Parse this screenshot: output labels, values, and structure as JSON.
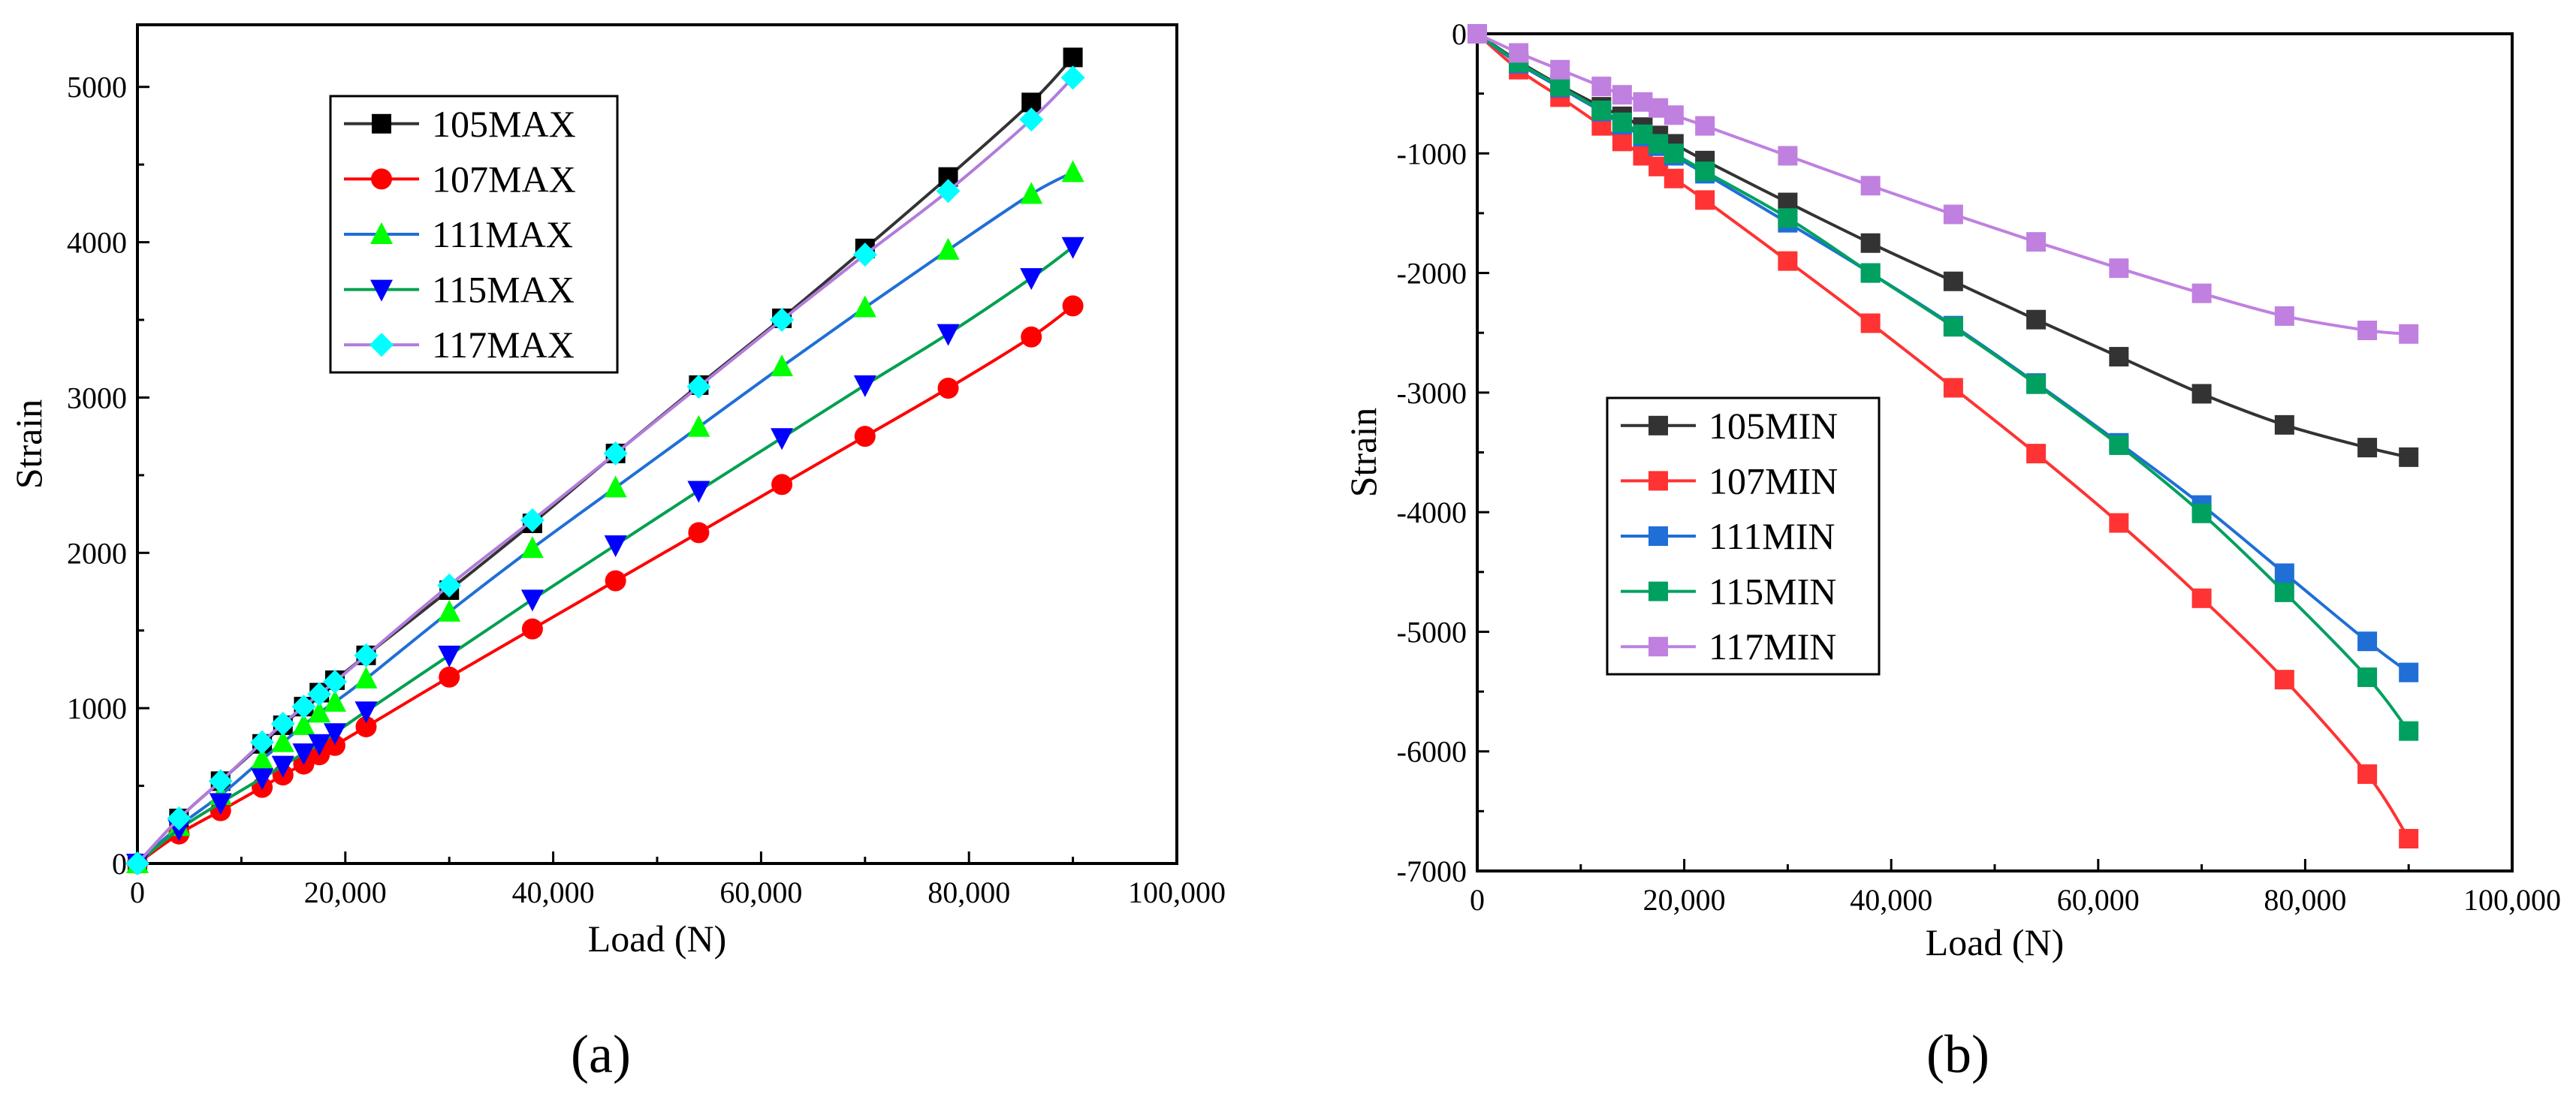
{
  "chart_data": [
    {
      "type": "line",
      "panel_label": "(a)",
      "xlabel": "Load (N)",
      "ylabel": "Strain",
      "xlim": [
        0,
        100000
      ],
      "ylim": [
        0,
        5400
      ],
      "xticks": [
        0,
        20000,
        40000,
        60000,
        80000,
        100000
      ],
      "xtick_labels": [
        "0",
        "20,000",
        "40,000",
        "60,000",
        "80,000",
        "100,000"
      ],
      "yticks": [
        0,
        1000,
        2000,
        3000,
        4000,
        5000
      ],
      "ytick_labels": [
        "0",
        "1000",
        "2000",
        "3000",
        "4000",
        "5000"
      ],
      "legend_position": "top-left",
      "grid": false,
      "x": [
        0,
        4000,
        8000,
        12000,
        14000,
        16000,
        17500,
        19000,
        22000,
        30000,
        38000,
        46000,
        54000,
        62000,
        70000,
        78000,
        86000,
        90000
      ],
      "series": [
        {
          "name": "105MAX",
          "color": "#000000",
          "line_color": "#333333",
          "marker": "square",
          "values": [
            0,
            290,
            530,
            770,
            890,
            1010,
            1100,
            1180,
            1340,
            1760,
            2190,
            2640,
            3080,
            3510,
            3960,
            4420,
            4900,
            5190
          ]
        },
        {
          "name": "107MAX",
          "color": "#ff0000",
          "line_color": "#ff0000",
          "marker": "circle",
          "values": [
            0,
            190,
            340,
            490,
            570,
            640,
            700,
            760,
            880,
            1200,
            1510,
            1820,
            2130,
            2440,
            2750,
            3060,
            3390,
            3590
          ]
        },
        {
          "name": "111MAX",
          "color": "#00ff00",
          "line_color": "#1f6fd6",
          "marker": "triangle-up",
          "values": [
            0,
            240,
            440,
            670,
            780,
            890,
            970,
            1040,
            1190,
            1620,
            2030,
            2420,
            2810,
            3200,
            3580,
            3950,
            4310,
            4450
          ]
        },
        {
          "name": "115MAX",
          "color": "#0000ff",
          "line_color": "#00a050",
          "marker": "triangle-down",
          "values": [
            0,
            220,
            390,
            550,
            630,
            710,
            770,
            840,
            980,
            1340,
            1700,
            2050,
            2400,
            2740,
            3080,
            3410,
            3770,
            3970
          ]
        },
        {
          "name": "117MAX",
          "color": "#00ffff",
          "line_color": "#b07cdc",
          "marker": "diamond",
          "values": [
            0,
            290,
            530,
            780,
            900,
            1010,
            1090,
            1170,
            1340,
            1790,
            2210,
            2640,
            3070,
            3500,
            3920,
            4330,
            4790,
            5060
          ]
        }
      ]
    },
    {
      "type": "line",
      "panel_label": "(b)",
      "xlabel": "Load (N)",
      "ylabel": "Strain",
      "xlim": [
        0,
        100000
      ],
      "ylim": [
        -7000,
        0
      ],
      "xticks": [
        0,
        20000,
        40000,
        60000,
        80000,
        100000
      ],
      "xtick_labels": [
        "0",
        "20,000",
        "40,000",
        "60,000",
        "80,000",
        "100,000"
      ],
      "yticks": [
        0,
        -1000,
        -2000,
        -3000,
        -4000,
        -5000,
        -6000,
        -7000
      ],
      "ytick_labels": [
        "0",
        "-1000",
        "-2000",
        "-3000",
        "-4000",
        "-5000",
        "-6000",
        "-7000"
      ],
      "legend_position": "center-left",
      "grid": false,
      "x": [
        0,
        4000,
        8000,
        12000,
        14000,
        16000,
        17500,
        19000,
        22000,
        30000,
        38000,
        46000,
        54000,
        62000,
        70000,
        78000,
        86000,
        90000
      ],
      "series": [
        {
          "name": "105MIN",
          "color": "#333333",
          "line_color": "#333333",
          "marker": "square",
          "values": [
            0,
            -230,
            -430,
            -610,
            -690,
            -780,
            -850,
            -920,
            -1060,
            -1410,
            -1750,
            -2070,
            -2390,
            -2700,
            -3010,
            -3270,
            -3460,
            -3540
          ]
        },
        {
          "name": "107MIN",
          "color": "#ff3333",
          "line_color": "#ff3333",
          "marker": "square",
          "values": [
            0,
            -300,
            -530,
            -770,
            -900,
            -1020,
            -1110,
            -1210,
            -1390,
            -1900,
            -2420,
            -2960,
            -3510,
            -4090,
            -4720,
            -5400,
            -6190,
            -6730
          ]
        },
        {
          "name": "111MIN",
          "color": "#1f6fd6",
          "line_color": "#1f6fd6",
          "marker": "square",
          "values": [
            0,
            -250,
            -450,
            -650,
            -760,
            -860,
            -940,
            -1020,
            -1170,
            -1580,
            -2000,
            -2440,
            -2920,
            -3420,
            -3940,
            -4510,
            -5080,
            -5340
          ]
        },
        {
          "name": "115MIN",
          "color": "#00a060",
          "line_color": "#00a060",
          "marker": "square",
          "values": [
            0,
            -240,
            -440,
            -640,
            -740,
            -840,
            -920,
            -1000,
            -1150,
            -1540,
            -2000,
            -2450,
            -2930,
            -3440,
            -4010,
            -4670,
            -5380,
            -5830
          ]
        },
        {
          "name": "117MIN",
          "color": "#c080e0",
          "line_color": "#c080e0",
          "marker": "square",
          "values": [
            0,
            -160,
            -300,
            -440,
            -510,
            -570,
            -620,
            -680,
            -770,
            -1020,
            -1270,
            -1510,
            -1740,
            -1960,
            -2170,
            -2360,
            -2480,
            -2510
          ]
        }
      ]
    }
  ]
}
